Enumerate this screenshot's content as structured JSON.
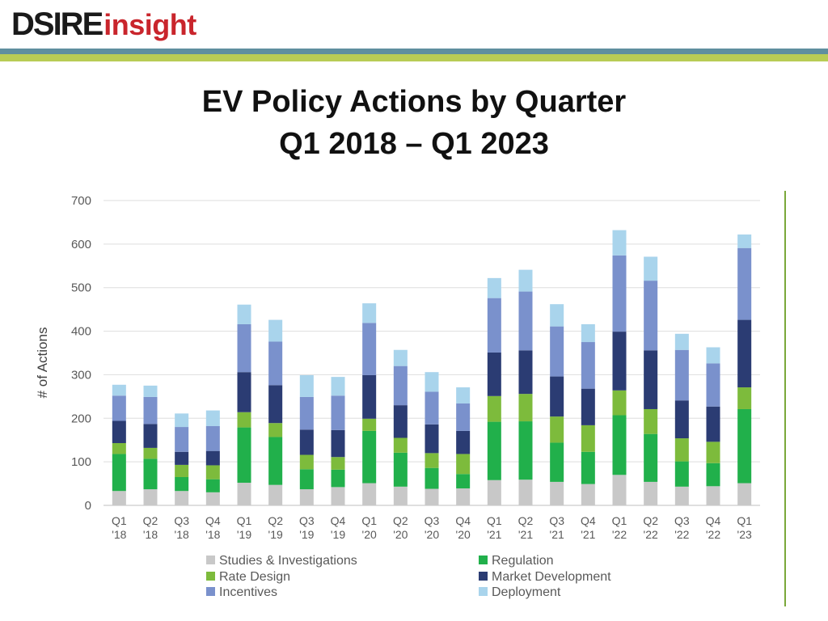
{
  "header": {
    "logo_part1": "DSIRE",
    "logo_part2": "insight"
  },
  "title_lines": [
    "EV Policy Actions by Quarter",
    "Q1 2018 – Q1 2023"
  ],
  "colors": {
    "studies": "#c8c8c8",
    "regulation": "#21b04b",
    "rate_design": "#7dbb3c",
    "market_development": "#2b3c73",
    "incentives": "#7a91cc",
    "deployment": "#a9d4ec"
  },
  "chart_data": {
    "type": "bar",
    "stacked": true,
    "title": "EV Policy Actions by Quarter",
    "subtitle": "Q1 2018 – Q1 2023",
    "xlabel": "",
    "ylabel": "# of Actions",
    "ylim": [
      0,
      700
    ],
    "yticks": [
      0,
      100,
      200,
      300,
      400,
      500,
      600,
      700
    ],
    "grid": true,
    "legend_position": "bottom",
    "categories": [
      [
        "Q1",
        "'18"
      ],
      [
        "Q2",
        "'18"
      ],
      [
        "Q3",
        "'18"
      ],
      [
        "Q4",
        "'18"
      ],
      [
        "Q1",
        "'19"
      ],
      [
        "Q2",
        "'19"
      ],
      [
        "Q3",
        "'19"
      ],
      [
        "Q4",
        "'19"
      ],
      [
        "Q1",
        "'20"
      ],
      [
        "Q2",
        "'20"
      ],
      [
        "Q3",
        "'20"
      ],
      [
        "Q4",
        "'20"
      ],
      [
        "Q1",
        "'21"
      ],
      [
        "Q2",
        "'21"
      ],
      [
        "Q3",
        "'21"
      ],
      [
        "Q4",
        "'21"
      ],
      [
        "Q1",
        "'22"
      ],
      [
        "Q2",
        "'22"
      ],
      [
        "Q3",
        "'22"
      ],
      [
        "Q4",
        "'22"
      ],
      [
        "Q1",
        "'23"
      ]
    ],
    "series": [
      {
        "name": "Studies & Investigations",
        "color_key": "studies",
        "values": [
          33,
          37,
          33,
          30,
          52,
          47,
          37,
          42,
          51,
          43,
          38,
          39,
          58,
          59,
          54,
          49,
          70,
          54,
          43,
          44,
          51
        ]
      },
      {
        "name": "Regulation",
        "color_key": "regulation",
        "values": [
          85,
          70,
          32,
          30,
          127,
          110,
          46,
          40,
          120,
          78,
          48,
          33,
          134,
          134,
          90,
          74,
          137,
          110,
          58,
          53,
          170
        ]
      },
      {
        "name": "Rate Design",
        "color_key": "rate_design",
        "values": [
          25,
          25,
          28,
          32,
          35,
          32,
          33,
          29,
          28,
          34,
          34,
          46,
          59,
          63,
          60,
          61,
          57,
          57,
          53,
          49,
          50
        ]
      },
      {
        "name": "Market Development",
        "color_key": "market_development",
        "values": [
          51,
          55,
          30,
          33,
          92,
          87,
          58,
          62,
          100,
          75,
          66,
          53,
          100,
          100,
          92,
          84,
          135,
          135,
          87,
          81,
          155
        ]
      },
      {
        "name": "Incentives",
        "color_key": "incentives",
        "values": [
          58,
          62,
          57,
          57,
          110,
          100,
          75,
          79,
          120,
          90,
          75,
          63,
          125,
          135,
          115,
          107,
          175,
          160,
          116,
          99,
          165
        ]
      },
      {
        "name": "Deployment",
        "color_key": "deployment",
        "values": [
          25,
          26,
          31,
          36,
          45,
          50,
          50,
          43,
          45,
          37,
          45,
          37,
          46,
          50,
          51,
          41,
          58,
          55,
          37,
          37,
          31
        ]
      }
    ],
    "legend": [
      {
        "label": "Studies & Investigations",
        "color_key": "studies"
      },
      {
        "label": "Regulation",
        "color_key": "regulation"
      },
      {
        "label": "Rate Design",
        "color_key": "rate_design"
      },
      {
        "label": "Market Development",
        "color_key": "market_development"
      },
      {
        "label": "Incentives",
        "color_key": "incentives"
      },
      {
        "label": "Deployment",
        "color_key": "deployment"
      }
    ]
  }
}
